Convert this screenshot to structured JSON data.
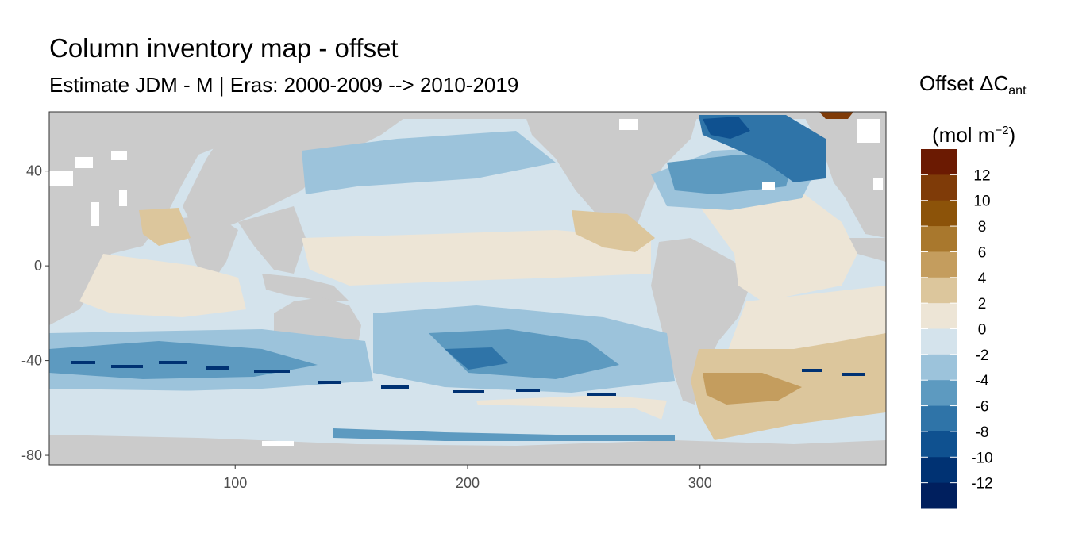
{
  "chart_data": {
    "type": "heatmap",
    "title": "Column inventory map - offset",
    "subtitle": "Estimate JDM - M | Eras: 2000-2009 --> 2010-2019",
    "legend": {
      "title_line1_main": "Offset ΔC",
      "title_line1_sub": "ant",
      "title_line2_pre": "(mol m",
      "title_line2_sup": "−2",
      "title_line2_post": ")",
      "placement": "right",
      "breaks": [
        12,
        10,
        8,
        6,
        4,
        2,
        0,
        -2,
        -4,
        -6,
        -8,
        -10,
        -12
      ],
      "break_labels": [
        "12",
        "10",
        "8",
        "6",
        "4",
        "2",
        "0",
        "-2",
        "-4",
        "-6",
        "-8",
        "-10",
        "-12"
      ],
      "colors": [
        "#6b1a02",
        "#7f3b08",
        "#8c5309",
        "#a9782d",
        "#c49d5e",
        "#dcc69c",
        "#ede5d6",
        "#d4e3ec",
        "#9cc3db",
        "#5d9ac0",
        "#2f74a8",
        "#0f5190",
        "#003273",
        "#001f5e"
      ]
    },
    "x_axis": {
      "ticks": [
        100,
        200,
        300
      ],
      "tick_labels": [
        "100",
        "200",
        "300"
      ],
      "lim": [
        20,
        380
      ]
    },
    "y_axis": {
      "ticks": [
        40,
        0,
        -40,
        -80
      ],
      "tick_labels": [
        "40",
        "0",
        "-40",
        "-80"
      ],
      "lim": [
        -84,
        65
      ]
    },
    "land_color": "#cbcbcb",
    "missing_color": "#ffffff",
    "grid": false
  }
}
